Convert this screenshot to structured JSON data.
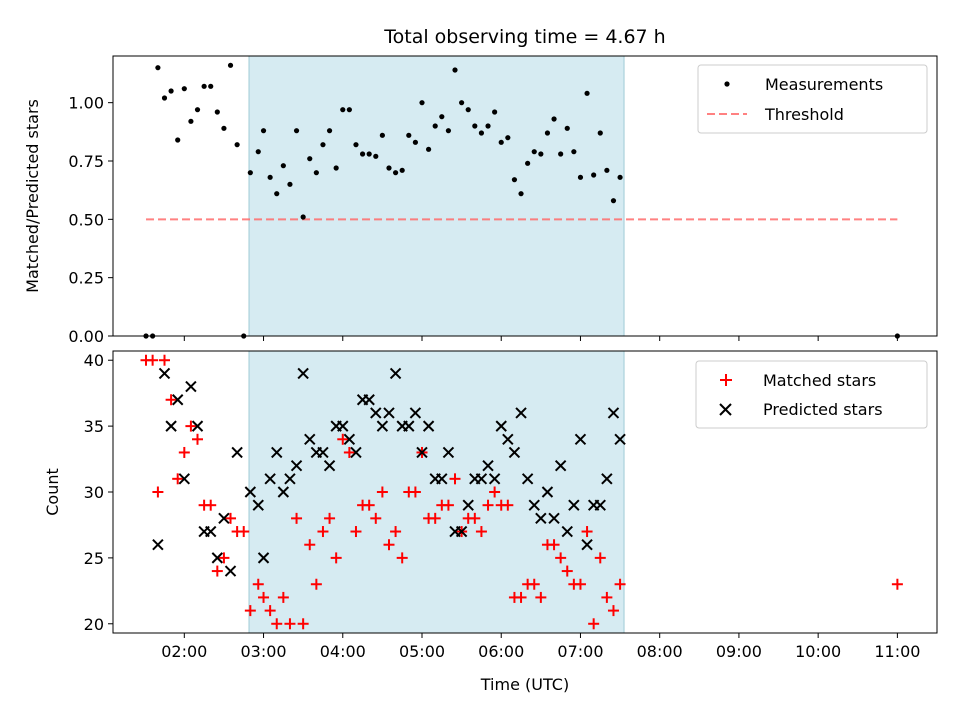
{
  "chart_data": [
    {
      "type": "scatter",
      "title": "Total observing time = 4.67 h",
      "xlabel": "",
      "ylabel": "Matched/Predicted stars",
      "xlim": [
        "01:06",
        "11:30"
      ],
      "ylim": [
        0,
        1.2
      ],
      "yticks": [
        "0.00",
        "0.25",
        "0.50",
        "0.75",
        "1.00"
      ],
      "legend_position": "upper-right",
      "observing_window": [
        "02:49",
        "07:33"
      ],
      "series": [
        {
          "name": "Measurements",
          "marker": "dot",
          "color": "#000000",
          "points": [
            [
              "01:31",
              0.0
            ],
            [
              "01:36",
              0.0
            ],
            [
              "01:40",
              1.15
            ],
            [
              "01:45",
              1.02
            ],
            [
              "01:50",
              1.05
            ],
            [
              "01:55",
              0.84
            ],
            [
              "02:00",
              1.06
            ],
            [
              "02:05",
              0.92
            ],
            [
              "02:10",
              0.97
            ],
            [
              "02:15",
              1.07
            ],
            [
              "02:20",
              1.07
            ],
            [
              "02:25",
              0.96
            ],
            [
              "02:30",
              0.89
            ],
            [
              "02:35",
              1.16
            ],
            [
              "02:40",
              0.82
            ],
            [
              "02:45",
              0.0
            ],
            [
              "02:50",
              0.7
            ],
            [
              "02:56",
              0.79
            ],
            [
              "03:00",
              0.88
            ],
            [
              "03:05",
              0.68
            ],
            [
              "03:10",
              0.61
            ],
            [
              "03:15",
              0.73
            ],
            [
              "03:20",
              0.65
            ],
            [
              "03:25",
              0.88
            ],
            [
              "03:30",
              0.51
            ],
            [
              "03:35",
              0.76
            ],
            [
              "03:40",
              0.7
            ],
            [
              "03:45",
              0.82
            ],
            [
              "03:50",
              0.88
            ],
            [
              "03:55",
              0.72
            ],
            [
              "04:00",
              0.97
            ],
            [
              "04:05",
              0.97
            ],
            [
              "04:10",
              0.82
            ],
            [
              "04:15",
              0.78
            ],
            [
              "04:20",
              0.78
            ],
            [
              "04:25",
              0.77
            ],
            [
              "04:30",
              0.86
            ],
            [
              "04:35",
              0.72
            ],
            [
              "04:40",
              0.7
            ],
            [
              "04:45",
              0.71
            ],
            [
              "04:50",
              0.86
            ],
            [
              "04:55",
              0.83
            ],
            [
              "05:00",
              1.0
            ],
            [
              "05:05",
              0.8
            ],
            [
              "05:10",
              0.9
            ],
            [
              "05:15",
              0.94
            ],
            [
              "05:20",
              0.88
            ],
            [
              "05:25",
              1.14
            ],
            [
              "05:30",
              1.0
            ],
            [
              "05:35",
              0.97
            ],
            [
              "05:40",
              0.9
            ],
            [
              "05:45",
              0.87
            ],
            [
              "05:50",
              0.9
            ],
            [
              "05:55",
              0.96
            ],
            [
              "06:00",
              0.83
            ],
            [
              "06:05",
              0.85
            ],
            [
              "06:10",
              0.67
            ],
            [
              "06:15",
              0.61
            ],
            [
              "06:20",
              0.74
            ],
            [
              "06:25",
              0.79
            ],
            [
              "06:30",
              0.78
            ],
            [
              "06:35",
              0.87
            ],
            [
              "06:40",
              0.93
            ],
            [
              "06:45",
              0.78
            ],
            [
              "06:50",
              0.89
            ],
            [
              "06:55",
              0.79
            ],
            [
              "07:00",
              0.68
            ],
            [
              "07:05",
              1.04
            ],
            [
              "07:10",
              0.69
            ],
            [
              "07:15",
              0.87
            ],
            [
              "07:20",
              0.71
            ],
            [
              "07:25",
              0.58
            ],
            [
              "07:30",
              0.68
            ],
            [
              "11:00",
              0.0
            ]
          ]
        },
        {
          "name": "Threshold",
          "line_style": "dashed",
          "color": "#ff6b6b",
          "x": [
            "01:31",
            "11:00"
          ],
          "y": [
            0.5,
            0.5
          ]
        }
      ]
    },
    {
      "type": "scatter",
      "title": "",
      "xlabel": "Time (UTC)",
      "ylabel": "Count",
      "xlim": [
        "01:06",
        "11:30"
      ],
      "ylim": [
        19.3,
        40.7
      ],
      "yticks": [
        "20",
        "25",
        "30",
        "35",
        "40"
      ],
      "xticks": [
        "02:00",
        "03:00",
        "04:00",
        "05:00",
        "06:00",
        "07:00",
        "08:00",
        "09:00",
        "10:00",
        "11:00"
      ],
      "legend_position": "upper-right",
      "observing_window": [
        "02:49",
        "07:33"
      ],
      "series": [
        {
          "name": "Matched stars",
          "marker": "plus",
          "color": "#ff0000",
          "points": [
            [
              "01:31",
              40
            ],
            [
              "01:36",
              40
            ],
            [
              "01:40",
              30
            ],
            [
              "01:45",
              40
            ],
            [
              "01:50",
              37
            ],
            [
              "01:55",
              31
            ],
            [
              "02:00",
              33
            ],
            [
              "02:05",
              35
            ],
            [
              "02:10",
              34
            ],
            [
              "02:15",
              29
            ],
            [
              "02:20",
              29
            ],
            [
              "02:25",
              24
            ],
            [
              "02:30",
              25
            ],
            [
              "02:35",
              28
            ],
            [
              "02:40",
              27
            ],
            [
              "02:45",
              27
            ],
            [
              "02:50",
              21
            ],
            [
              "02:56",
              23
            ],
            [
              "03:00",
              22
            ],
            [
              "03:05",
              21
            ],
            [
              "03:10",
              20
            ],
            [
              "03:15",
              22
            ],
            [
              "03:20",
              20
            ],
            [
              "03:25",
              28
            ],
            [
              "03:30",
              20
            ],
            [
              "03:35",
              26
            ],
            [
              "03:40",
              23
            ],
            [
              "03:45",
              27
            ],
            [
              "03:50",
              28
            ],
            [
              "03:55",
              25
            ],
            [
              "04:00",
              34
            ],
            [
              "04:05",
              33
            ],
            [
              "04:10",
              27
            ],
            [
              "04:15",
              29
            ],
            [
              "04:20",
              29
            ],
            [
              "04:25",
              28
            ],
            [
              "04:30",
              30
            ],
            [
              "04:35",
              26
            ],
            [
              "04:40",
              27
            ],
            [
              "04:45",
              25
            ],
            [
              "04:50",
              30
            ],
            [
              "04:55",
              30
            ],
            [
              "05:00",
              33
            ],
            [
              "05:05",
              28
            ],
            [
              "05:10",
              28
            ],
            [
              "05:15",
              29
            ],
            [
              "05:20",
              29
            ],
            [
              "05:25",
              31
            ],
            [
              "05:30",
              27
            ],
            [
              "05:35",
              28
            ],
            [
              "05:40",
              28
            ],
            [
              "05:45",
              27
            ],
            [
              "05:50",
              29
            ],
            [
              "05:55",
              30
            ],
            [
              "06:00",
              29
            ],
            [
              "06:05",
              29
            ],
            [
              "06:10",
              22
            ],
            [
              "06:15",
              22
            ],
            [
              "06:20",
              23
            ],
            [
              "06:25",
              23
            ],
            [
              "06:30",
              22
            ],
            [
              "06:35",
              26
            ],
            [
              "06:40",
              26
            ],
            [
              "06:45",
              25
            ],
            [
              "06:50",
              24
            ],
            [
              "06:55",
              23
            ],
            [
              "07:00",
              23
            ],
            [
              "07:05",
              27
            ],
            [
              "07:10",
              20
            ],
            [
              "07:15",
              25
            ],
            [
              "07:20",
              22
            ],
            [
              "07:25",
              21
            ],
            [
              "07:30",
              23
            ],
            [
              "11:00",
              23
            ]
          ]
        },
        {
          "name": "Predicted stars",
          "marker": "x",
          "color": "#000000",
          "points": [
            [
              "01:40",
              26
            ],
            [
              "01:45",
              39
            ],
            [
              "01:50",
              35
            ],
            [
              "01:55",
              37
            ],
            [
              "02:00",
              31
            ],
            [
              "02:05",
              38
            ],
            [
              "02:10",
              35
            ],
            [
              "02:15",
              27
            ],
            [
              "02:20",
              27
            ],
            [
              "02:25",
              25
            ],
            [
              "02:30",
              28
            ],
            [
              "02:35",
              24
            ],
            [
              "02:40",
              33
            ],
            [
              "02:50",
              30
            ],
            [
              "02:56",
              29
            ],
            [
              "03:00",
              25
            ],
            [
              "03:05",
              31
            ],
            [
              "03:10",
              33
            ],
            [
              "03:15",
              30
            ],
            [
              "03:20",
              31
            ],
            [
              "03:25",
              32
            ],
            [
              "03:30",
              39
            ],
            [
              "03:35",
              34
            ],
            [
              "03:40",
              33
            ],
            [
              "03:45",
              33
            ],
            [
              "03:50",
              32
            ],
            [
              "03:55",
              35
            ],
            [
              "04:00",
              35
            ],
            [
              "04:05",
              34
            ],
            [
              "04:10",
              33
            ],
            [
              "04:15",
              37
            ],
            [
              "04:20",
              37
            ],
            [
              "04:25",
              36
            ],
            [
              "04:30",
              35
            ],
            [
              "04:35",
              36
            ],
            [
              "04:40",
              39
            ],
            [
              "04:45",
              35
            ],
            [
              "04:50",
              35
            ],
            [
              "04:55",
              36
            ],
            [
              "05:00",
              33
            ],
            [
              "05:05",
              35
            ],
            [
              "05:10",
              31
            ],
            [
              "05:15",
              31
            ],
            [
              "05:20",
              33
            ],
            [
              "05:25",
              27
            ],
            [
              "05:30",
              27
            ],
            [
              "05:35",
              29
            ],
            [
              "05:40",
              31
            ],
            [
              "05:45",
              31
            ],
            [
              "05:50",
              32
            ],
            [
              "05:55",
              31
            ],
            [
              "06:00",
              35
            ],
            [
              "06:05",
              34
            ],
            [
              "06:10",
              33
            ],
            [
              "06:15",
              36
            ],
            [
              "06:20",
              31
            ],
            [
              "06:25",
              29
            ],
            [
              "06:30",
              28
            ],
            [
              "06:35",
              30
            ],
            [
              "06:40",
              28
            ],
            [
              "06:45",
              32
            ],
            [
              "06:50",
              27
            ],
            [
              "06:55",
              29
            ],
            [
              "07:00",
              34
            ],
            [
              "07:05",
              26
            ],
            [
              "07:10",
              29
            ],
            [
              "07:15",
              29
            ],
            [
              "07:20",
              31
            ],
            [
              "07:25",
              36
            ],
            [
              "07:30",
              34
            ]
          ]
        }
      ]
    }
  ]
}
